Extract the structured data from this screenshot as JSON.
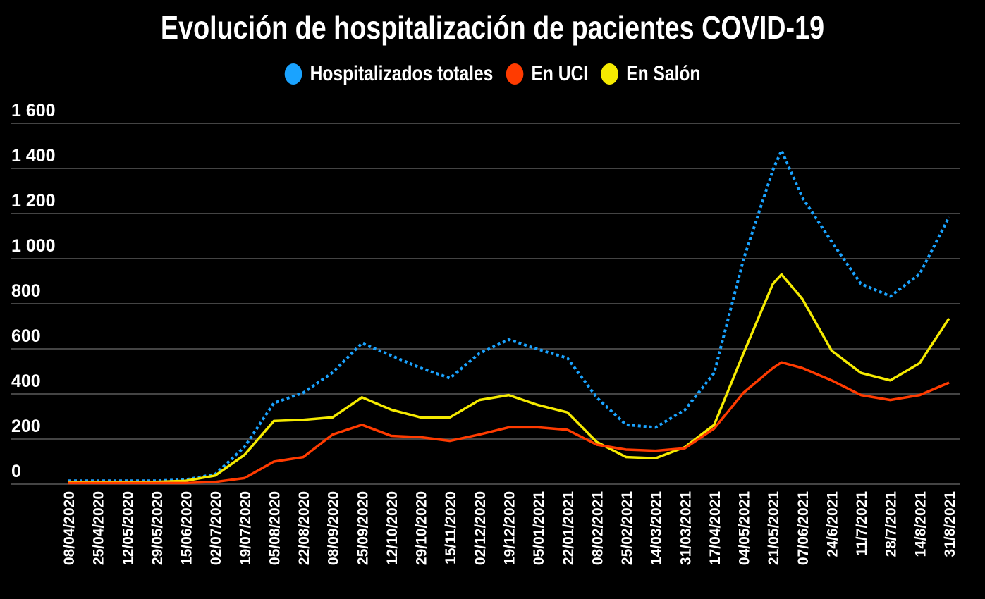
{
  "chart_data": {
    "type": "line",
    "title": "Evolución de hospitalización de pacientes COVID-19",
    "xlabel": "",
    "ylabel": "",
    "ylim": [
      0,
      1600
    ],
    "yticks": [
      0,
      200,
      400,
      600,
      800,
      1000,
      1200,
      1400,
      1600
    ],
    "ytick_labels": [
      "0",
      "200",
      "400",
      "600",
      "800",
      "1 000",
      "1 200",
      "1 400",
      "1 600"
    ],
    "grid": true,
    "legend_position": "top-center",
    "x_range_days": [
      0,
      510
    ],
    "xtick_labels": [
      "08/04/2020",
      "25/04/2020",
      "12/05/2020",
      "29/05/2020",
      "15/06/2020",
      "02/07/2020",
      "19/07/2020",
      "05/08/2020",
      "22/08/2020",
      "08/09/2020",
      "25/09/2020",
      "12/10/2020",
      "29/10/2020",
      "15/11/2020",
      "02/12/2020",
      "19/12/2020",
      "05/01/2021",
      "22/01/2021",
      "08/02/2021",
      "25/02/2021",
      "14/03/2021",
      "31/03/2021",
      "17/04/2021",
      "04/05/2021",
      "21/05/2021",
      "07/06/2021",
      "24/6/2021",
      "11/7/2021",
      "28/7/2021",
      "14/8/2021",
      "31/8/2021"
    ],
    "x_days": [
      0,
      17,
      34,
      51,
      68,
      85,
      102,
      119,
      136,
      153,
      170,
      187,
      204,
      221,
      238,
      255,
      272,
      289,
      306,
      323,
      340,
      357,
      374,
      391,
      408,
      413,
      425,
      442,
      459,
      476,
      493,
      510
    ],
    "series": [
      {
        "name": "Hospitalizados totales",
        "color": "#1aa3ff",
        "style": "dotted",
        "values": [
          15,
          15,
          15,
          15,
          20,
          44,
          165,
          360,
          405,
          495,
          625,
          570,
          515,
          470,
          580,
          641,
          598,
          559,
          384,
          263,
          252,
          329,
          493,
          998,
          1393,
          1480,
          1272,
          1075,
          888,
          833,
          932,
          1184
        ]
      },
      {
        "name": "En UCI",
        "color": "#ff3b00",
        "style": "solid",
        "values": [
          5,
          5,
          5,
          5,
          5,
          10,
          27,
          100,
          120,
          220,
          263,
          214,
          208,
          192,
          220,
          252,
          252,
          241,
          175,
          153,
          148,
          159,
          247,
          406,
          515,
          540,
          515,
          460,
          395,
          373,
          395,
          450
        ]
      },
      {
        "name": "En Salón",
        "color": "#f5ea00",
        "style": "solid",
        "values": [
          10,
          10,
          10,
          10,
          15,
          38,
          130,
          280,
          285,
          296,
          385,
          330,
          296,
          296,
          373,
          395,
          351,
          318,
          187,
          120,
          115,
          164,
          263,
          581,
          888,
          930,
          822,
          592,
          493,
          460,
          537,
          735
        ]
      }
    ]
  }
}
